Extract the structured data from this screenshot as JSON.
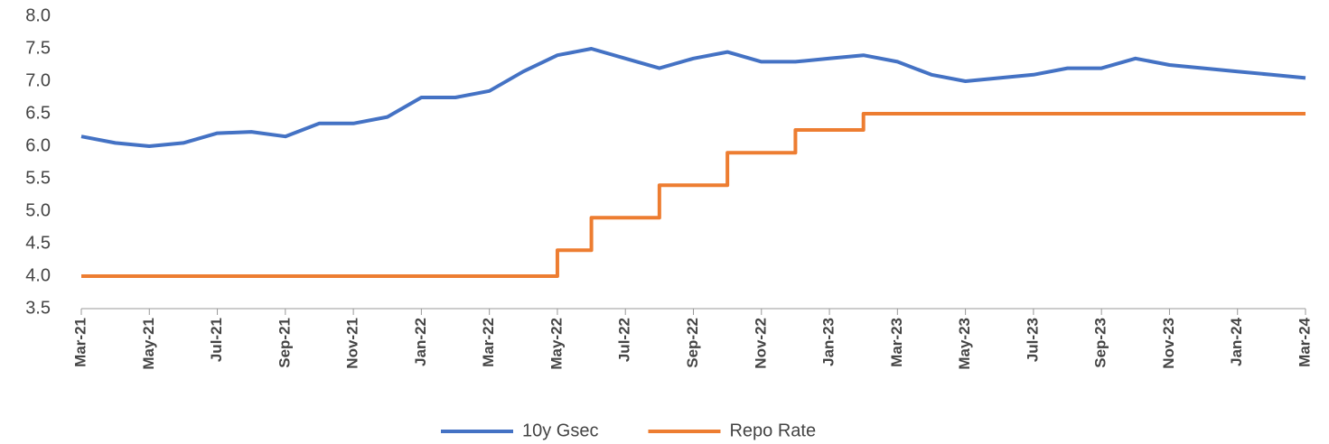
{
  "chart_data": {
    "type": "line",
    "categories": [
      "Mar-21",
      null,
      "May-21",
      null,
      "Jul-21",
      null,
      "Sep-21",
      null,
      "Nov-21",
      null,
      "Jan-22",
      null,
      "Mar-22",
      null,
      "May-22",
      null,
      "Jul-22",
      null,
      "Sep-22",
      null,
      "Nov-22",
      null,
      "Jan-23",
      null,
      "Mar-23",
      null,
      "May-23",
      null,
      "Jul-23",
      null,
      "Sep-23",
      null,
      "Nov-23",
      null,
      "Jan-24",
      null,
      "Mar-24"
    ],
    "series": [
      {
        "name": "10y Gsec",
        "color": "#4472c4",
        "values": [
          6.15,
          6.05,
          6.0,
          6.05,
          6.2,
          6.22,
          6.15,
          6.35,
          6.35,
          6.45,
          6.75,
          6.75,
          6.85,
          7.15,
          7.4,
          7.5,
          7.35,
          7.2,
          7.35,
          7.45,
          7.3,
          7.3,
          7.35,
          7.4,
          7.3,
          7.1,
          7.0,
          7.05,
          7.1,
          7.2,
          7.2,
          7.35,
          7.25,
          7.2,
          7.15,
          7.1,
          7.05
        ]
      },
      {
        "name": "Repo Rate",
        "color": "#ed7d31",
        "step": true,
        "values": [
          4.0,
          4.0,
          4.0,
          4.0,
          4.0,
          4.0,
          4.0,
          4.0,
          4.0,
          4.0,
          4.0,
          4.0,
          4.0,
          4.0,
          4.4,
          4.9,
          4.9,
          5.4,
          5.4,
          5.9,
          5.9,
          6.25,
          6.25,
          6.5,
          6.5,
          6.5,
          6.5,
          6.5,
          6.5,
          6.5,
          6.5,
          6.5,
          6.5,
          6.5,
          6.5,
          6.5,
          6.5
        ]
      }
    ],
    "ylim": [
      3.5,
      8.0
    ],
    "yticks": [
      3.5,
      {
        "value": 4,
        "label": "4.0"
      },
      4.5,
      {
        "value": 5,
        "label": "5.0"
      },
      5.5,
      {
        "value": 6,
        "label": "6.0"
      },
      6.5,
      {
        "value": 7,
        "label": "7.0"
      },
      7.5,
      {
        "value": 8,
        "label": "8.0"
      }
    ],
    "grid": false,
    "legend": "bottom"
  }
}
